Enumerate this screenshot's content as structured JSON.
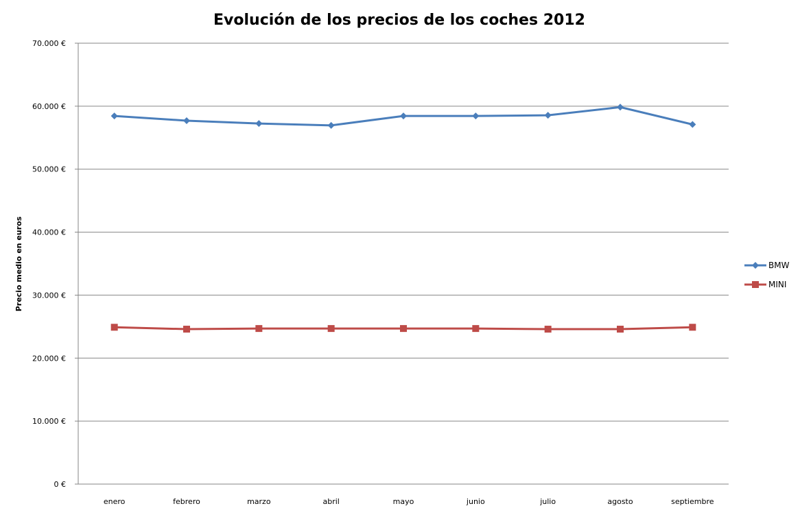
{
  "chart_data": {
    "type": "line",
    "title": "Evolución de los precios de los coches 2012",
    "xlabel": "",
    "ylabel": "Precio medio en euros",
    "categories": [
      "enero",
      "febrero",
      "marzo",
      "abril",
      "mayo",
      "junio",
      "julio",
      "agosto",
      "septiembre"
    ],
    "ylim": [
      0,
      70000
    ],
    "yticks": [
      0,
      10000,
      20000,
      30000,
      40000,
      50000,
      60000,
      70000
    ],
    "ytick_labels": [
      "0 €",
      "10.000 €",
      "20.000 €",
      "30.000 €",
      "40.000 €",
      "50.000 €",
      "60.000 €",
      "70.000 €"
    ],
    "grid": true,
    "legend_position": "right",
    "series": [
      {
        "name": "BMW",
        "color": "#4a7ebb",
        "marker": "diamond",
        "values": [
          58450,
          57700,
          57250,
          56950,
          58450,
          58450,
          58550,
          59850,
          57100
        ]
      },
      {
        "name": "MINI",
        "color": "#be4b48",
        "marker": "square",
        "values": [
          24900,
          24600,
          24700,
          24700,
          24700,
          24700,
          24600,
          24600,
          24900
        ]
      }
    ]
  }
}
